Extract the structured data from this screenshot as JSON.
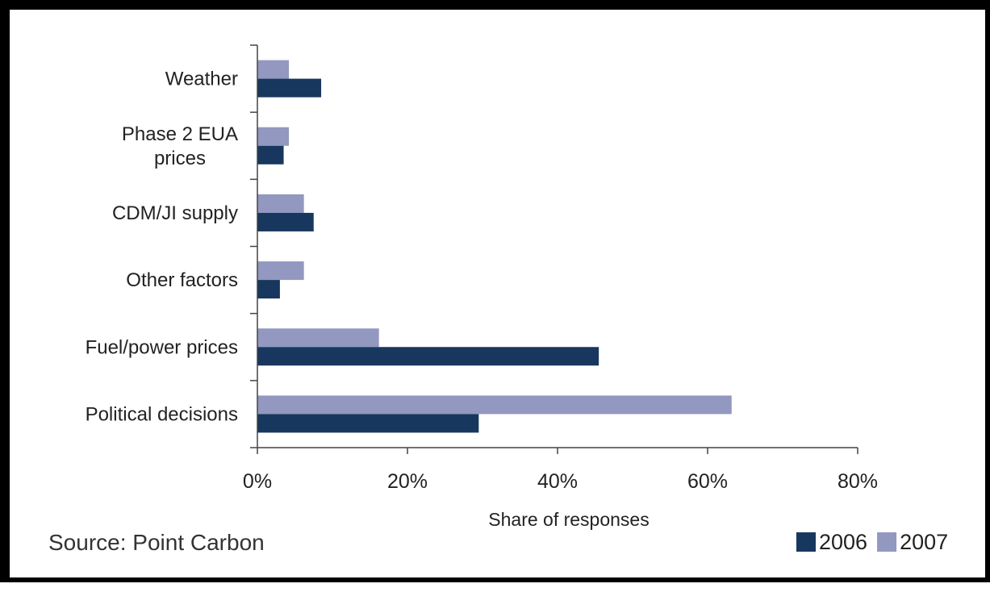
{
  "chart_data": {
    "type": "bar",
    "orientation": "horizontal",
    "categories": [
      "Weather",
      "Phase 2 EUA prices",
      "CDM/JI supply",
      "Other factors",
      "Fuel/power prices",
      "Political decisions"
    ],
    "category_lines": [
      [
        "Weather"
      ],
      [
        "Phase 2 EUA",
        "prices"
      ],
      [
        "CDM/JI supply"
      ],
      [
        "Other factors"
      ],
      [
        "Fuel/power prices"
      ],
      [
        "Political decisions"
      ]
    ],
    "series": [
      {
        "name": "2006",
        "color": "#17375e",
        "values": [
          8.5,
          3.5,
          7.5,
          3,
          45.5,
          29.5
        ]
      },
      {
        "name": "2007",
        "color": "#9298c0",
        "values": [
          4.2,
          4.2,
          6.2,
          6.2,
          16.2,
          63.2
        ]
      }
    ],
    "xlabel": "Share of responses",
    "xlim": [
      0,
      80
    ],
    "xticks": [
      0,
      20,
      40,
      60,
      80
    ],
    "xtick_labels": [
      "0%",
      "20%",
      "40%",
      "60%",
      "80%"
    ],
    "legend_position": "bottom-right",
    "grid": false,
    "source": "Source: Point Carbon"
  }
}
